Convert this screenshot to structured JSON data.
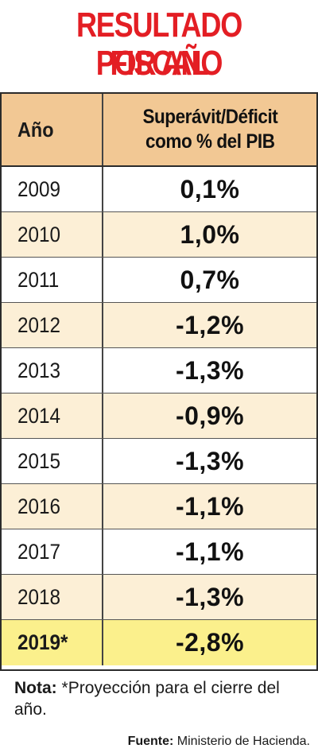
{
  "chart_data": {
    "type": "table",
    "title_line1": "RESULTADO FISCAL",
    "title_line2": "POR AÑO",
    "columns": [
      "Año",
      "Superávit/Déficit",
      "como % del PIB"
    ],
    "rows": [
      {
        "year": "2009",
        "value": "0,1%"
      },
      {
        "year": "2010",
        "value": "1,0%"
      },
      {
        "year": "2011",
        "value": "0,7%"
      },
      {
        "year": "2012",
        "value": "-1,2%"
      },
      {
        "year": "2013",
        "value": "-1,3%"
      },
      {
        "year": "2014",
        "value": "-0,9%"
      },
      {
        "year": "2015",
        "value": "-1,3%"
      },
      {
        "year": "2016",
        "value": "-1,1%"
      },
      {
        "year": "2017",
        "value": "-1,1%"
      },
      {
        "year": "2018",
        "value": "-1,3%"
      },
      {
        "year": "2019*",
        "value": "-2,8%"
      }
    ],
    "values_numeric": [
      0.1,
      1.0,
      0.7,
      -1.2,
      -1.3,
      -0.9,
      -1.3,
      -1.1,
      -1.1,
      -1.3,
      -2.8
    ],
    "note_label": "Nota:",
    "note_text": "*Proyección para el cierre del año.",
    "source_label": "Fuente:",
    "source_text": "Ministerio de Hacienda."
  },
  "colors": {
    "title": "#e31e24",
    "header_bg": "#f2c894",
    "row_alt_bg": "#fcefd6",
    "highlight_bg": "#fbf08c"
  }
}
